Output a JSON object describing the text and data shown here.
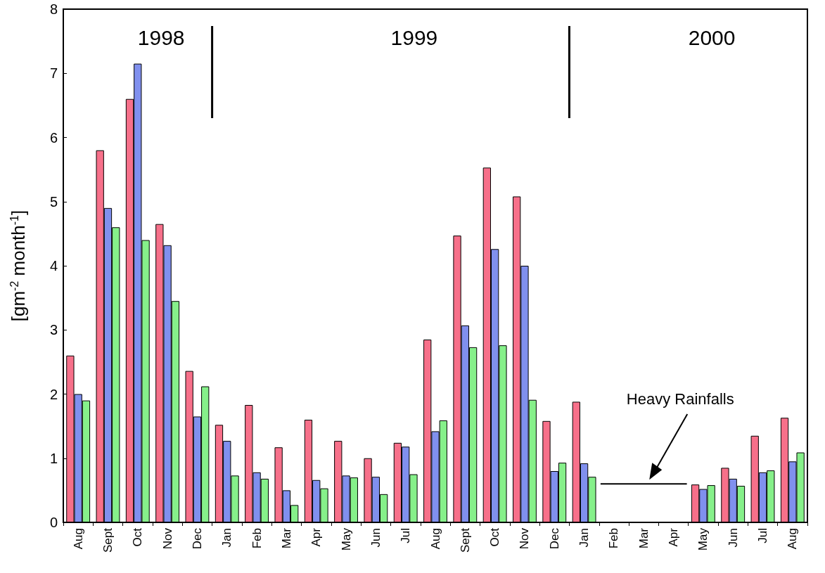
{
  "chart_data": {
    "type": "bar",
    "ylabel": "[gm$^{-2}$ month$^{-1}$]",
    "categories": [
      "Aug",
      "Sept",
      "Oct",
      "Nov",
      "Dec",
      "Jan",
      "Feb",
      "Mar",
      "Apr",
      "May",
      "Jun",
      "Jul",
      "Aug",
      "Sept",
      "Oct",
      "Nov",
      "Dec",
      "Jan",
      "Feb",
      "Mar",
      "Apr",
      "May",
      "Jun",
      "Jul",
      "Aug"
    ],
    "series": [
      {
        "color": "#f7708a",
        "values": [
          2.6,
          5.8,
          6.6,
          4.65,
          2.36,
          1.52,
          1.83,
          1.17,
          1.6,
          1.27,
          1.0,
          1.24,
          2.85,
          4.47,
          5.53,
          5.08,
          1.58,
          1.88,
          null,
          null,
          null,
          0.59,
          0.85,
          1.35,
          1.63
        ]
      },
      {
        "color": "#8090ee",
        "values": [
          2.0,
          4.9,
          7.15,
          4.32,
          1.65,
          1.27,
          0.78,
          0.5,
          0.66,
          0.73,
          0.71,
          1.18,
          1.42,
          3.07,
          4.26,
          4.0,
          0.8,
          0.92,
          null,
          null,
          null,
          0.52,
          0.68,
          0.78,
          0.95
        ]
      },
      {
        "color": "#86f08a",
        "values": [
          1.9,
          4.6,
          4.4,
          3.45,
          2.12,
          0.73,
          0.68,
          0.27,
          0.53,
          0.7,
          0.44,
          0.75,
          1.59,
          2.73,
          2.76,
          1.91,
          0.93,
          0.71,
          null,
          null,
          null,
          0.58,
          0.57,
          0.81,
          1.09
        ]
      }
    ],
    "ylim": [
      0,
      8
    ],
    "yticks": [
      0,
      1,
      2,
      3,
      4,
      5,
      6,
      7,
      8
    ],
    "grid": false,
    "annotations": [
      "1998",
      "1999",
      "2000",
      "Heavy Rainfalls"
    ]
  }
}
